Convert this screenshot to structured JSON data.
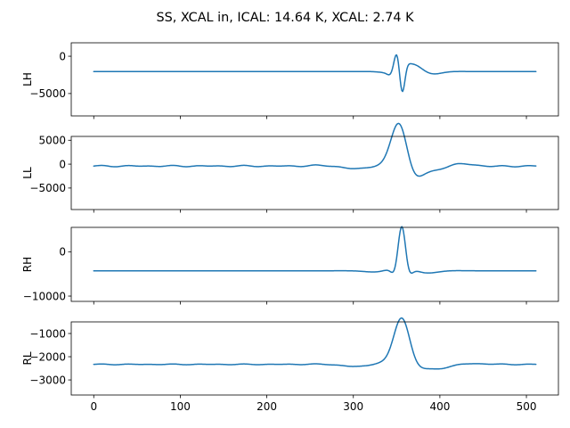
{
  "figure": {
    "title": "SS, XCAL in, ICAL: 14.64 K, XCAL: 2.74 K"
  },
  "chart_data": [
    {
      "type": "line",
      "ylabel": "LH",
      "xlim": [
        -26,
        537
      ],
      "ylim": [
        -8000,
        1800
      ],
      "xticks": [
        0,
        100,
        200,
        300,
        400,
        500
      ],
      "xtick_labels": [],
      "yticks": [
        -5000,
        0
      ],
      "ytick_labels": [
        "−5000",
        "0"
      ],
      "color": "#1f77b4",
      "n_points": 512,
      "baseline": -2050,
      "wiggle": 0,
      "components": [
        {
          "center": 350,
          "amp": 2900,
          "freq": 0.17,
          "phase": -0.5,
          "width": 5
        },
        {
          "center": 356,
          "amp": 4200,
          "freq": 0.21,
          "phase": 3.1,
          "width": 4
        },
        {
          "center": 370,
          "amp": 1000,
          "freq": 0.09,
          "phase": 0.3,
          "width": 18
        }
      ],
      "grid": false
    },
    {
      "type": "line",
      "ylabel": "LL",
      "xlim": [
        -26,
        537
      ],
      "ylim": [
        -9500,
        5800
      ],
      "xticks": [
        0,
        100,
        200,
        300,
        400,
        500
      ],
      "xtick_labels": [],
      "yticks": [
        -5000,
        0,
        5000
      ],
      "ytick_labels": [
        "−5000",
        "0",
        "5000"
      ],
      "color": "#1f77b4",
      "n_points": 512,
      "baseline": -400,
      "wiggle": 150,
      "components": [
        {
          "center": 355,
          "amp": 8200,
          "freq": 0.09,
          "phase": 0.4,
          "width": 12
        },
        {
          "center": 360,
          "amp": 1400,
          "freq": 0.07,
          "phase": 1.2,
          "width": 45
        }
      ],
      "grid": false
    },
    {
      "type": "line",
      "ylabel": "RH",
      "xlim": [
        -26,
        537
      ],
      "ylim": [
        -11200,
        5500
      ],
      "xticks": [
        0,
        100,
        200,
        300,
        400,
        500
      ],
      "xtick_labels": [],
      "yticks": [
        -10000,
        0
      ],
      "ytick_labels": [
        "−10000",
        "0"
      ],
      "color": "#1f77b4",
      "n_points": 512,
      "baseline": -4300,
      "wiggle": 0,
      "components": [
        {
          "center": 356,
          "amp": 9000,
          "freq": 0.2,
          "phase": 0,
          "width": 6
        },
        {
          "center": 360,
          "amp": 1000,
          "freq": 0.08,
          "phase": 0.5,
          "width": 25
        }
      ],
      "grid": false
    },
    {
      "type": "line",
      "ylabel": "RL",
      "xlim": [
        -26,
        537
      ],
      "ylim": [
        -3650,
        -500
      ],
      "xticks": [
        0,
        100,
        200,
        300,
        400,
        500
      ],
      "xtick_labels": [
        "0",
        "100",
        "200",
        "300",
        "400",
        "500"
      ],
      "yticks": [
        -3000,
        -2000,
        -1000
      ],
      "ytick_labels": [
        "−3000",
        "−2000",
        "−1000"
      ],
      "color": "#1f77b4",
      "n_points": 512,
      "baseline": -2330,
      "wiggle": 18,
      "components": [
        {
          "center": 356,
          "amp": 1750,
          "freq": 0.075,
          "phase": 0,
          "width": 11
        },
        {
          "center": 360,
          "amp": 300,
          "freq": 0.06,
          "phase": 0.8,
          "width": 40
        }
      ],
      "grid": false
    }
  ]
}
